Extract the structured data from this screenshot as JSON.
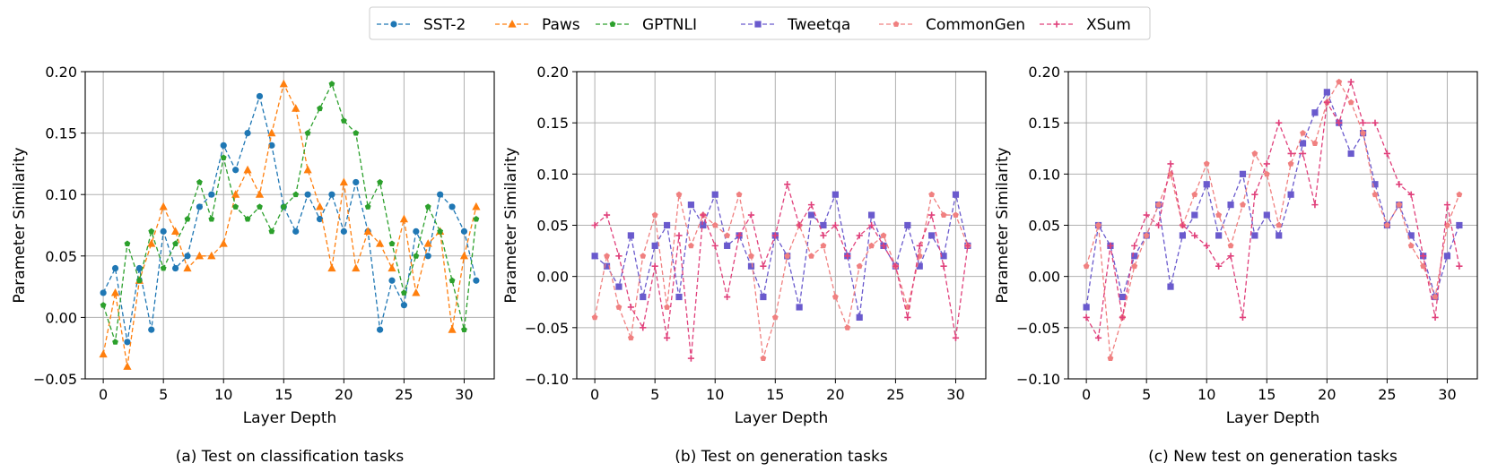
{
  "legend": {
    "placement": "top-center",
    "entries": [
      {
        "name": "SST-2",
        "color": "#1f77b4",
        "marker": "circle"
      },
      {
        "name": "Paws",
        "color": "#ff7f0e",
        "marker": "triangle"
      },
      {
        "name": "GPTNLI",
        "color": "#2ca02c",
        "marker": "pentagon"
      },
      {
        "name": "Tweetqa",
        "color": "#6a5acd",
        "marker": "square"
      },
      {
        "name": "CommonGen",
        "color": "#f08080",
        "marker": "pentagon"
      },
      {
        "name": "XSum",
        "color": "#e0407b",
        "marker": "plus"
      }
    ]
  },
  "chart_data": [
    {
      "type": "line",
      "caption": "(a) Test on classification tasks",
      "xlabel": "Layer Depth",
      "ylabel": "Parameter Similarity",
      "xlim": [
        -1.5,
        32.5
      ],
      "ylim": [
        -0.05,
        0.2
      ],
      "xticks": [
        0,
        5,
        10,
        15,
        20,
        25,
        30
      ],
      "yticks": [
        -0.05,
        0.0,
        0.05,
        0.1,
        0.15,
        0.2
      ],
      "ytick_labels": [
        "−0.05",
        "0.00",
        "0.05",
        "0.10",
        "0.15",
        "0.20"
      ],
      "grid": true,
      "x": [
        0,
        1,
        2,
        3,
        4,
        5,
        6,
        7,
        8,
        9,
        10,
        11,
        12,
        13,
        14,
        15,
        16,
        17,
        18,
        19,
        20,
        21,
        22,
        23,
        24,
        25,
        26,
        27,
        28,
        29,
        30,
        31
      ],
      "series": [
        {
          "name": "SST-2",
          "color": "#1f77b4",
          "marker": "circle",
          "values": [
            0.02,
            0.04,
            -0.02,
            0.04,
            -0.01,
            0.07,
            0.04,
            0.05,
            0.09,
            0.1,
            0.14,
            0.12,
            0.15,
            0.18,
            0.14,
            0.09,
            0.07,
            0.1,
            0.08,
            0.1,
            0.07,
            0.11,
            0.07,
            -0.01,
            0.03,
            0.01,
            0.07,
            0.05,
            0.1,
            0.09,
            0.07,
            0.03
          ]
        },
        {
          "name": "Paws",
          "color": "#ff7f0e",
          "marker": "triangle",
          "values": [
            -0.03,
            0.02,
            -0.04,
            0.03,
            0.06,
            0.09,
            0.07,
            0.04,
            0.05,
            0.05,
            0.06,
            0.1,
            0.12,
            0.1,
            0.15,
            0.19,
            0.17,
            0.12,
            0.09,
            0.04,
            0.11,
            0.04,
            0.07,
            0.06,
            0.04,
            0.08,
            0.02,
            0.06,
            0.07,
            -0.01,
            0.05,
            0.09
          ]
        },
        {
          "name": "GPTNLI",
          "color": "#2ca02c",
          "marker": "pentagon",
          "values": [
            0.01,
            -0.02,
            0.06,
            0.03,
            0.07,
            0.04,
            0.06,
            0.08,
            0.11,
            0.08,
            0.13,
            0.09,
            0.08,
            0.09,
            0.07,
            0.09,
            0.1,
            0.15,
            0.17,
            0.19,
            0.16,
            0.15,
            0.09,
            0.11,
            0.06,
            0.02,
            0.05,
            0.09,
            0.07,
            0.03,
            -0.01,
            0.08
          ]
        }
      ]
    },
    {
      "type": "line",
      "caption": "(b) Test on generation tasks",
      "xlabel": "Layer Depth",
      "ylabel": "Parameter Similarity",
      "xlim": [
        -1.5,
        32.5
      ],
      "ylim": [
        -0.1,
        0.2
      ],
      "xticks": [
        0,
        5,
        10,
        15,
        20,
        25,
        30
      ],
      "yticks": [
        -0.1,
        -0.05,
        0.0,
        0.05,
        0.1,
        0.15,
        0.2
      ],
      "ytick_labels": [
        "−0.10",
        "−0.05",
        "0.00",
        "0.05",
        "0.10",
        "0.15",
        "0.20"
      ],
      "grid": true,
      "x": [
        0,
        1,
        2,
        3,
        4,
        5,
        6,
        7,
        8,
        9,
        10,
        11,
        12,
        13,
        14,
        15,
        16,
        17,
        18,
        19,
        20,
        21,
        22,
        23,
        24,
        25,
        26,
        27,
        28,
        29,
        30,
        31
      ],
      "series": [
        {
          "name": "Tweetqa",
          "color": "#6a5acd",
          "marker": "square",
          "values": [
            0.02,
            0.01,
            -0.01,
            0.04,
            -0.02,
            0.03,
            0.05,
            -0.02,
            0.07,
            0.05,
            0.08,
            0.03,
            0.04,
            0.01,
            -0.02,
            0.04,
            0.02,
            -0.03,
            0.06,
            0.05,
            0.08,
            0.02,
            -0.04,
            0.06,
            0.03,
            0.01,
            0.05,
            0.01,
            0.04,
            0.02,
            0.08,
            0.03
          ]
        },
        {
          "name": "CommonGen",
          "color": "#f08080",
          "marker": "pentagon",
          "values": [
            -0.04,
            0.02,
            -0.03,
            -0.06,
            0.02,
            0.06,
            -0.03,
            0.08,
            0.03,
            0.06,
            0.05,
            0.04,
            0.08,
            0.02,
            -0.08,
            -0.04,
            0.02,
            0.05,
            0.02,
            0.03,
            -0.02,
            -0.05,
            0.01,
            0.03,
            0.04,
            0.01,
            -0.03,
            0.02,
            0.08,
            0.06,
            0.06,
            0.03
          ]
        },
        {
          "name": "XSum",
          "color": "#e0407b",
          "marker": "plus",
          "values": [
            0.05,
            0.06,
            0.02,
            -0.03,
            -0.05,
            0.01,
            -0.06,
            0.04,
            -0.08,
            0.06,
            0.03,
            -0.02,
            0.04,
            0.06,
            0.01,
            0.04,
            0.09,
            0.05,
            0.07,
            0.04,
            0.05,
            0.02,
            0.04,
            0.05,
            0.03,
            0.01,
            -0.04,
            0.03,
            0.06,
            0.01,
            -0.06,
            0.03
          ]
        }
      ]
    },
    {
      "type": "line",
      "caption": "(c) New test on generation tasks",
      "xlabel": "Layer Depth",
      "ylabel": "Parameter Similarity",
      "xlim": [
        -1.5,
        32.5
      ],
      "ylim": [
        -0.1,
        0.2
      ],
      "xticks": [
        0,
        5,
        10,
        15,
        20,
        25,
        30
      ],
      "yticks": [
        -0.1,
        -0.05,
        0.0,
        0.05,
        0.1,
        0.15,
        0.2
      ],
      "ytick_labels": [
        "−0.10",
        "−0.05",
        "0.00",
        "0.05",
        "0.10",
        "0.15",
        "0.20"
      ],
      "grid": true,
      "x": [
        0,
        1,
        2,
        3,
        4,
        5,
        6,
        7,
        8,
        9,
        10,
        11,
        12,
        13,
        14,
        15,
        16,
        17,
        18,
        19,
        20,
        21,
        22,
        23,
        24,
        25,
        26,
        27,
        28,
        29,
        30,
        31
      ],
      "series": [
        {
          "name": "Tweetqa",
          "color": "#6a5acd",
          "marker": "square",
          "values": [
            -0.03,
            0.05,
            0.03,
            -0.02,
            0.02,
            0.04,
            0.07,
            -0.01,
            0.04,
            0.06,
            0.09,
            0.04,
            0.07,
            0.1,
            0.04,
            0.06,
            0.04,
            0.08,
            0.13,
            0.16,
            0.18,
            0.15,
            0.12,
            0.14,
            0.09,
            0.05,
            0.07,
            0.04,
            0.02,
            -0.02,
            0.02,
            0.05
          ]
        },
        {
          "name": "CommonGen",
          "color": "#f08080",
          "marker": "pentagon",
          "values": [
            0.01,
            0.05,
            -0.08,
            -0.04,
            0.01,
            0.04,
            0.07,
            0.1,
            0.05,
            0.08,
            0.11,
            0.06,
            0.03,
            0.07,
            0.12,
            0.1,
            0.05,
            0.11,
            0.14,
            0.13,
            0.17,
            0.19,
            0.17,
            0.14,
            0.08,
            0.05,
            0.07,
            0.03,
            0.01,
            -0.02,
            0.05,
            0.08
          ]
        },
        {
          "name": "XSum",
          "color": "#e0407b",
          "marker": "plus",
          "values": [
            -0.04,
            -0.06,
            0.03,
            -0.04,
            0.03,
            0.06,
            0.05,
            0.11,
            0.05,
            0.04,
            0.03,
            0.01,
            0.02,
            -0.04,
            0.08,
            0.11,
            0.15,
            0.12,
            0.12,
            0.07,
            0.17,
            0.15,
            0.19,
            0.15,
            0.15,
            0.12,
            0.09,
            0.08,
            0.02,
            -0.04,
            0.07,
            0.01
          ]
        }
      ]
    }
  ]
}
